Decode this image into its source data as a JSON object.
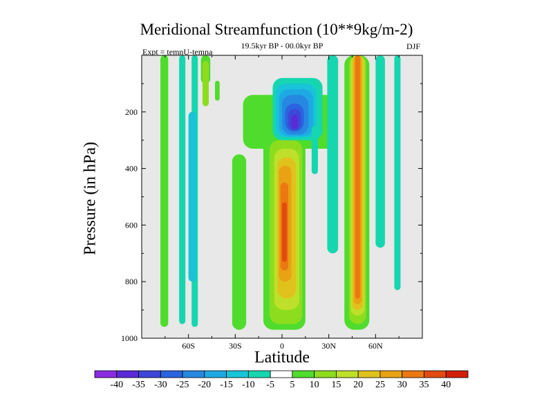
{
  "chart_data": {
    "type": "contour",
    "title": "Meridional Streamfunction (10**9kg/m-2)",
    "subtitle": "19.5kyr BP - 00.0kyr BP",
    "experiment_label": "Expt = temnU-temna",
    "season": "DJF",
    "xlabel": "Latitude",
    "ylabel": "Pressure (in hPa)",
    "xlim": [
      -90,
      90
    ],
    "ylim": [
      1000,
      0
    ],
    "x_ticks": [
      {
        "value": -60,
        "label": "60S"
      },
      {
        "value": -30,
        "label": "30S"
      },
      {
        "value": 0,
        "label": "0"
      },
      {
        "value": 30,
        "label": "30N"
      },
      {
        "value": 60,
        "label": "60N"
      }
    ],
    "y_ticks": [
      {
        "value": 200,
        "label": "200"
      },
      {
        "value": 400,
        "label": "400"
      },
      {
        "value": 600,
        "label": "600"
      },
      {
        "value": 800,
        "label": "800"
      },
      {
        "value": 1000,
        "label": "1000"
      }
    ],
    "background_color": "#e8e8e8",
    "colorbar": {
      "levels": [
        "-40",
        "-35",
        "-30",
        "-25",
        "-20",
        "-15",
        "-10",
        "-5",
        "5",
        "10",
        "15",
        "20",
        "25",
        "30",
        "35",
        "40"
      ],
      "colors": [
        "#8a2be2",
        "#5a2ad6",
        "#3d47d8",
        "#2b63df",
        "#2688e0",
        "#1fa9e4",
        "#18c4d8",
        "#16d6b0",
        "#ffffff",
        "#4fdc2c",
        "#8ddd1e",
        "#bfe02a",
        "#e0c21c",
        "#e8a214",
        "#ec7812",
        "#e24a10",
        "#d21f0c"
      ]
    },
    "regions": [
      {
        "level": 5,
        "x": [
          -78,
          -73
        ],
        "p": [
          0,
          960
        ]
      },
      {
        "level": -5,
        "x": [
          -66,
          -62
        ],
        "p": [
          0,
          950
        ]
      },
      {
        "level": -5,
        "x": [
          -58,
          -54
        ],
        "p": [
          0,
          960
        ]
      },
      {
        "level": -10,
        "x": [
          -60,
          -55
        ],
        "p": [
          200,
          800
        ]
      },
      {
        "level": 5,
        "x": [
          -52,
          -46
        ],
        "p": [
          0,
          100
        ]
      },
      {
        "level": 10,
        "x": [
          -51,
          -47
        ],
        "p": [
          20,
          180
        ]
      },
      {
        "level": 5,
        "x": [
          -43,
          -40
        ],
        "p": [
          90,
          160
        ]
      },
      {
        "level": 5,
        "x": [
          -32,
          -23
        ],
        "p": [
          350,
          970
        ]
      },
      {
        "level": 5,
        "x": [
          -25,
          35
        ],
        "p": [
          140,
          330
        ]
      },
      {
        "level": 5,
        "x": [
          -12,
          15
        ],
        "p": [
          290,
          970
        ]
      },
      {
        "level": 10,
        "x": [
          -8,
          13
        ],
        "p": [
          300,
          950
        ]
      },
      {
        "level": 15,
        "x": [
          -5,
          11
        ],
        "p": [
          330,
          900
        ]
      },
      {
        "level": 20,
        "x": [
          -3,
          9
        ],
        "p": [
          360,
          860
        ]
      },
      {
        "level": 25,
        "x": [
          -2,
          6
        ],
        "p": [
          390,
          800
        ]
      },
      {
        "level": 30,
        "x": [
          -1,
          4
        ],
        "p": [
          450,
          760
        ]
      },
      {
        "level": 35,
        "x": [
          0,
          3
        ],
        "p": [
          520,
          730
        ]
      },
      {
        "level": -5,
        "x": [
          -6,
          26
        ],
        "p": [
          80,
          300
        ]
      },
      {
        "level": -10,
        "x": [
          -4,
          22
        ],
        "p": [
          100,
          290
        ]
      },
      {
        "level": -15,
        "x": [
          -2,
          20
        ],
        "p": [
          120,
          285
        ]
      },
      {
        "level": -20,
        "x": [
          0,
          17
        ],
        "p": [
          140,
          280
        ]
      },
      {
        "level": -25,
        "x": [
          2,
          14
        ],
        "p": [
          170,
          270
        ]
      },
      {
        "level": -30,
        "x": [
          4,
          12
        ],
        "p": [
          190,
          265
        ]
      },
      {
        "level": -35,
        "x": [
          6,
          10
        ],
        "p": [
          210,
          260
        ]
      },
      {
        "level": -5,
        "x": [
          19,
          23
        ],
        "p": [
          250,
          420
        ]
      },
      {
        "level": -5,
        "x": [
          29,
          36
        ],
        "p": [
          0,
          700
        ]
      },
      {
        "level": 5,
        "x": [
          40,
          56
        ],
        "p": [
          0,
          970
        ]
      },
      {
        "level": 10,
        "x": [
          43,
          54
        ],
        "p": [
          0,
          950
        ]
      },
      {
        "level": 15,
        "x": [
          44,
          53
        ],
        "p": [
          0,
          920
        ]
      },
      {
        "level": 20,
        "x": [
          45,
          52
        ],
        "p": [
          0,
          900
        ]
      },
      {
        "level": 25,
        "x": [
          46,
          51
        ],
        "p": [
          0,
          880
        ]
      },
      {
        "level": 30,
        "x": [
          47,
          50
        ],
        "p": [
          0,
          860
        ]
      },
      {
        "level": -5,
        "x": [
          60,
          66
        ],
        "p": [
          0,
          680
        ]
      },
      {
        "level": -5,
        "x": [
          72,
          76
        ],
        "p": [
          0,
          830
        ]
      }
    ]
  }
}
